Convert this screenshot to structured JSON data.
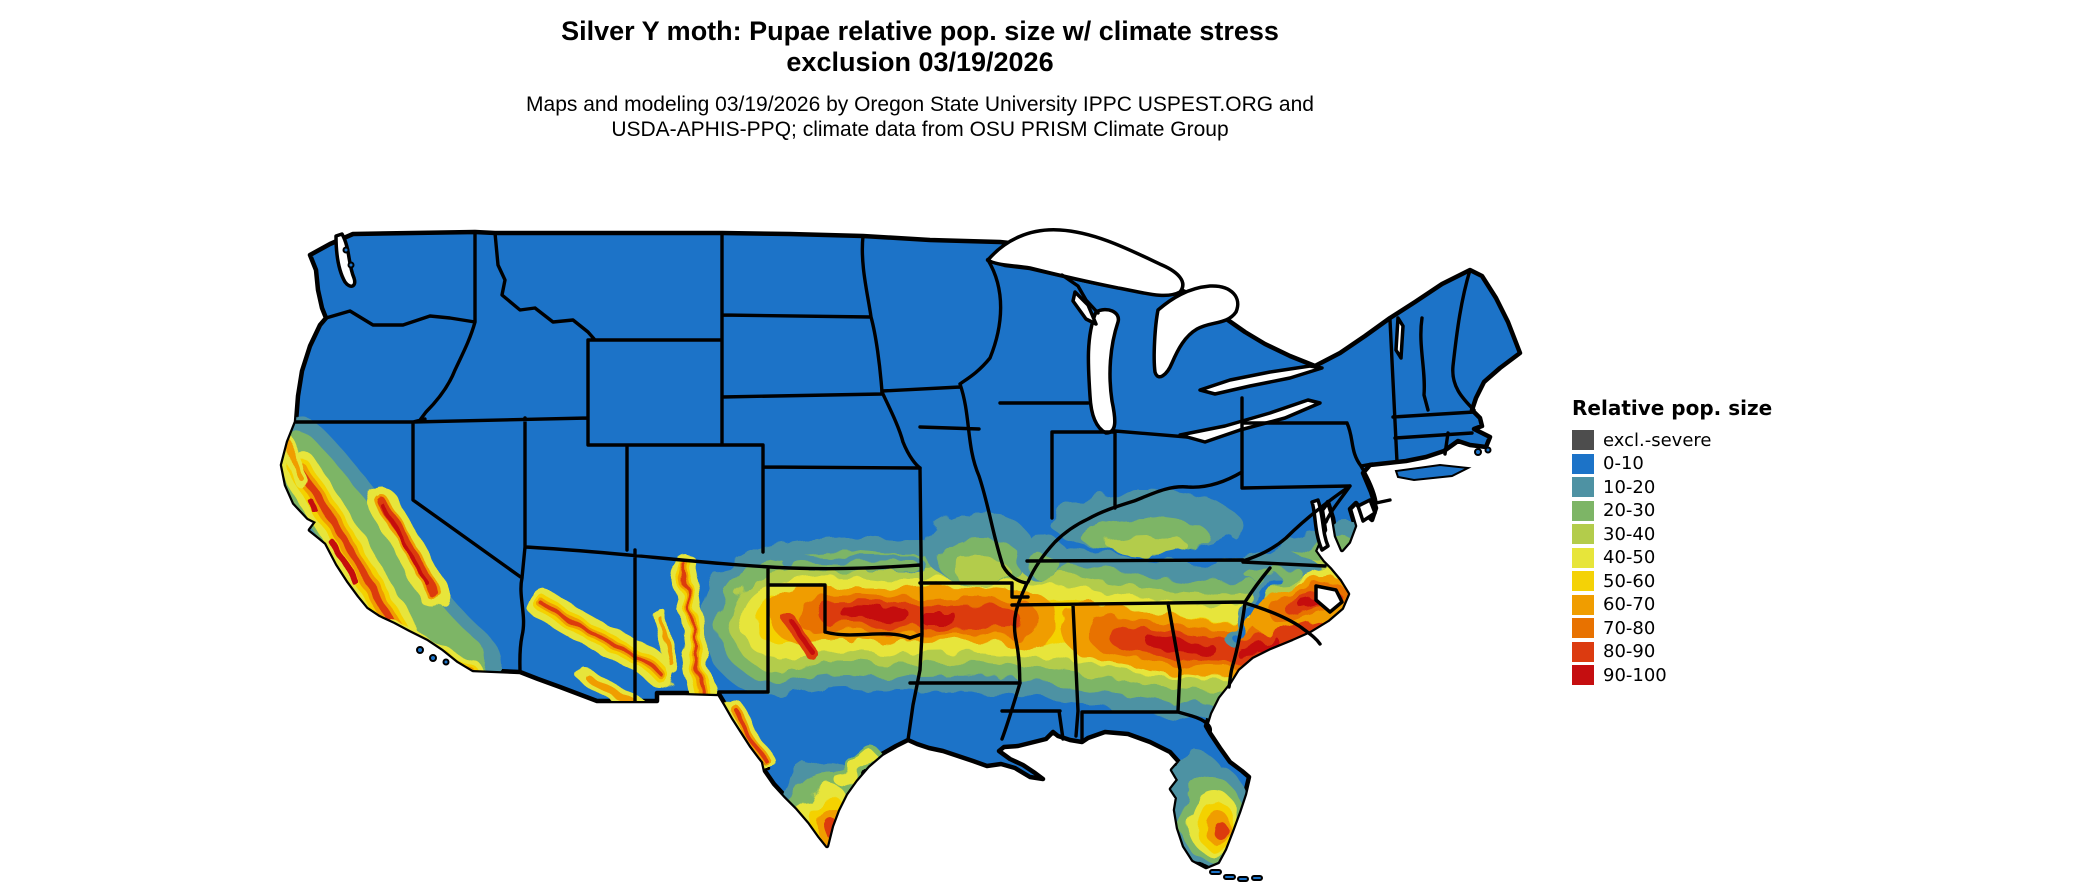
{
  "figure": {
    "title_line1": "Silver Y moth: Pupae relative pop. size w/ climate stress",
    "title_line2": "exclusion 03/19/2026",
    "subtitle_line1": "Maps and modeling 03/19/2026 by Oregon State University IPPC USPEST.ORG and",
    "subtitle_line2": "USDA-APHIS-PPQ; climate data from OSU PRISM Climate Group"
  },
  "legend": {
    "title": "Relative pop. size",
    "items": [
      {
        "label": "excl.-severe",
        "color": "#4d4d4d"
      },
      {
        "label": "0-10",
        "color": "#1c73c8"
      },
      {
        "label": "10-20",
        "color": "#4e92a3"
      },
      {
        "label": "20-30",
        "color": "#7db566"
      },
      {
        "label": "30-40",
        "color": "#b3cc4b"
      },
      {
        "label": "40-50",
        "color": "#e7e53a"
      },
      {
        "label": "50-60",
        "color": "#f4d206"
      },
      {
        "label": "60-70",
        "color": "#f09d00"
      },
      {
        "label": "70-80",
        "color": "#e87200"
      },
      {
        "label": "80-90",
        "color": "#dc3b10"
      },
      {
        "label": "90-100",
        "color": "#c50e10"
      }
    ]
  },
  "map": {
    "region": "Continental United States",
    "type": "raster relative population size model map",
    "water_color": "#ffffff",
    "state_border_color": "#000000",
    "base_value_color": "#1c73c8",
    "high_value_areas": [
      "California Central Valley and coast ranges",
      "Arizona Mogollon Rim and southeast mountains",
      "New Mexico Rio Grande corridor",
      "Oklahoma / Arkansas / north Texas band",
      "Tennessee / northern Alabama / Georgia / Carolinas band",
      "South Texas (Rio Grande Valley)",
      "South Florida"
    ]
  }
}
